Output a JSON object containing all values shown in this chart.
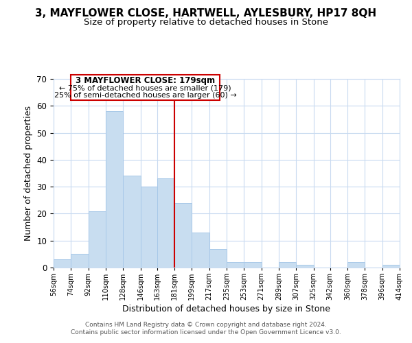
{
  "title": "3, MAYFLOWER CLOSE, HARTWELL, AYLESBURY, HP17 8QH",
  "subtitle": "Size of property relative to detached houses in Stone",
  "xlabel": "Distribution of detached houses by size in Stone",
  "ylabel": "Number of detached properties",
  "bar_color": "#c8ddf0",
  "bar_edge_color": "#a8c8e8",
  "bin_edges": [
    56,
    74,
    92,
    110,
    128,
    146,
    163,
    181,
    199,
    217,
    235,
    253,
    271,
    289,
    307,
    325,
    342,
    360,
    378,
    396,
    414
  ],
  "bar_heights": [
    3,
    5,
    21,
    58,
    34,
    30,
    33,
    24,
    13,
    7,
    2,
    2,
    0,
    2,
    1,
    0,
    0,
    2,
    0,
    1
  ],
  "tick_labels": [
    "56sqm",
    "74sqm",
    "92sqm",
    "110sqm",
    "128sqm",
    "146sqm",
    "163sqm",
    "181sqm",
    "199sqm",
    "217sqm",
    "235sqm",
    "253sqm",
    "271sqm",
    "289sqm",
    "307sqm",
    "325sqm",
    "342sqm",
    "360sqm",
    "378sqm",
    "396sqm",
    "414sqm"
  ],
  "vline_x": 181,
  "vline_color": "#cc0000",
  "ylim": [
    0,
    70
  ],
  "yticks": [
    0,
    10,
    20,
    30,
    40,
    50,
    60,
    70
  ],
  "annotation_title": "3 MAYFLOWER CLOSE: 179sqm",
  "annotation_line1": "← 75% of detached houses are smaller (179)",
  "annotation_line2": "25% of semi-detached houses are larger (60) →",
  "annotation_box_color": "#ffffff",
  "annotation_box_edge": "#cc0000",
  "footer_line1": "Contains HM Land Registry data © Crown copyright and database right 2024.",
  "footer_line2": "Contains public sector information licensed under the Open Government Licence v3.0.",
  "background_color": "#ffffff",
  "grid_color": "#c8daf0"
}
